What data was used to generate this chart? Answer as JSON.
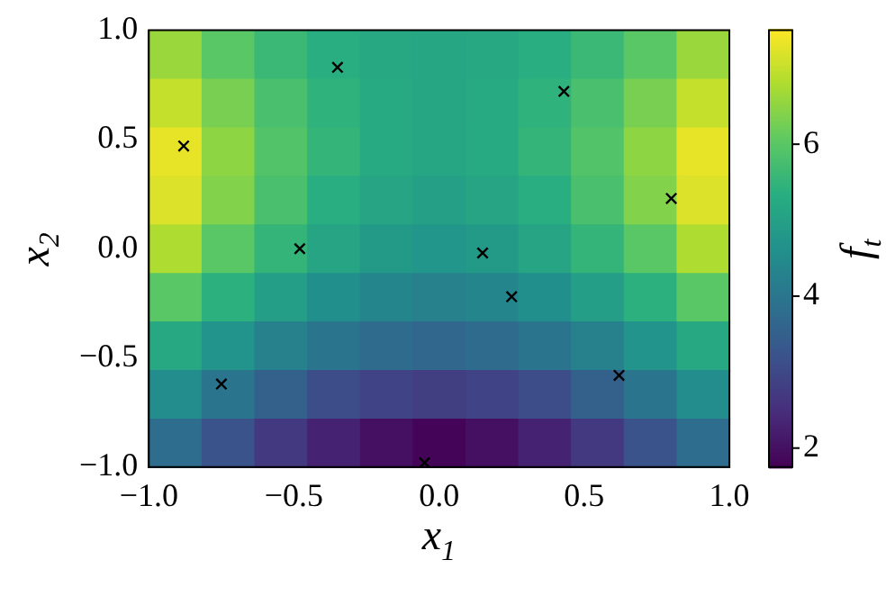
{
  "chart_data": {
    "type": "heatmap",
    "xlabel": "x$_{1}$",
    "ylabel": "x$_{2}$",
    "clabel": "f$_{t}$",
    "xlim": [
      -1,
      1
    ],
    "ylim": [
      -1,
      1
    ],
    "xticks": [
      {
        "value": -1,
        "label": "−1.0"
      },
      {
        "value": -0.5,
        "label": "−0.5"
      },
      {
        "value": 0,
        "label": "0.0"
      },
      {
        "value": 0.5,
        "label": "0.5"
      },
      {
        "value": 1,
        "label": "1.0"
      }
    ],
    "yticks": [
      {
        "value": -1,
        "label": "−1.0"
      },
      {
        "value": -0.5,
        "label": "−0.5"
      },
      {
        "value": 0,
        "label": "0.0"
      },
      {
        "value": 0.5,
        "label": "0.5"
      },
      {
        "value": 1,
        "label": "1.0"
      }
    ],
    "clim": [
      1.75,
      7.5
    ],
    "cticks": [
      2,
      4,
      6
    ],
    "cells": [
      [
        6.6,
        6.0,
        5.6,
        5.35,
        5.2,
        5.15,
        5.2,
        5.35,
        5.6,
        6.0,
        6.6
      ],
      [
        7.0,
        6.3,
        5.8,
        5.45,
        5.25,
        5.15,
        5.25,
        5.45,
        5.8,
        6.3,
        7.0
      ],
      [
        7.3,
        6.5,
        5.9,
        5.5,
        5.25,
        5.15,
        5.25,
        5.5,
        5.9,
        6.5,
        7.3
      ],
      [
        7.2,
        6.4,
        5.8,
        5.35,
        5.1,
        5.0,
        5.1,
        5.35,
        5.8,
        6.4,
        7.2
      ],
      [
        6.8,
        6.0,
        5.5,
        5.1,
        4.85,
        4.75,
        4.85,
        5.1,
        5.5,
        6.0,
        6.8
      ],
      [
        6.0,
        5.4,
        4.95,
        4.6,
        4.35,
        4.25,
        4.35,
        4.6,
        4.95,
        5.4,
        6.0
      ],
      [
        5.2,
        4.7,
        4.25,
        3.95,
        3.75,
        3.65,
        3.75,
        3.95,
        4.25,
        4.7,
        5.2
      ],
      [
        4.5,
        3.95,
        3.5,
        3.1,
        2.9,
        2.8,
        2.9,
        3.1,
        3.5,
        3.95,
        4.5
      ],
      [
        3.8,
        3.2,
        2.7,
        2.3,
        2.0,
        1.8,
        2.0,
        2.3,
        2.7,
        3.2,
        3.8
      ]
    ],
    "marker": "cross",
    "series": [
      {
        "type": "scatter",
        "color": "#000000",
        "x": [
          -0.88,
          -0.35,
          0.43,
          0.8,
          -0.48,
          0.15,
          0.25,
          -0.75,
          0.62,
          -0.05
        ],
        "values": [
          0.47,
          0.83,
          0.72,
          0.23,
          0.0,
          -0.02,
          -0.22,
          -0.62,
          -0.58,
          -0.98
        ]
      }
    ]
  }
}
